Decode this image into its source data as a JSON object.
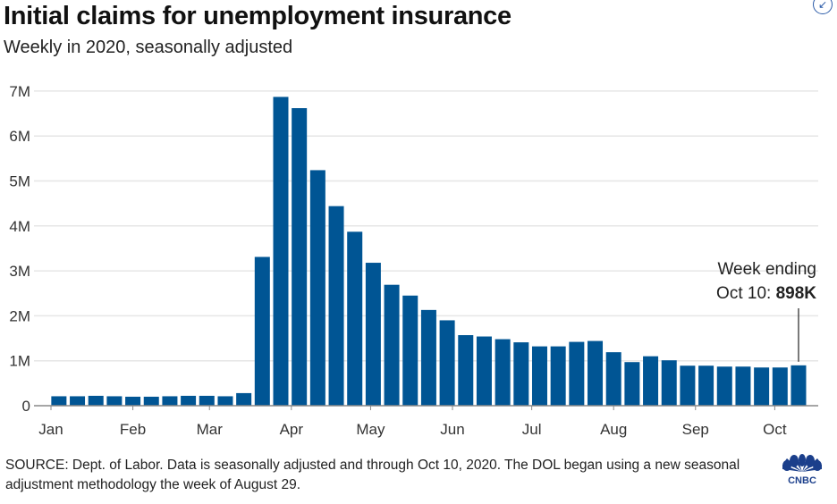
{
  "title": "Initial claims for unemployment insurance",
  "subtitle": "Weekly in 2020, seasonally adjusted",
  "source": "SOURCE: Dept. of Labor. Data is seasonally adjusted and through Oct 10, 2020. The DOL began using a new seasonal adjustment methodology the week of August 29.",
  "logo": "CNBC",
  "corner_icon": "expand-arrow-icon",
  "chart_data": {
    "type": "bar",
    "title": "Initial claims for unemployment insurance",
    "subtitle": "Weekly in 2020, seasonally adjusted",
    "xlabel": "",
    "ylabel": "",
    "ylim": [
      0,
      7000000
    ],
    "grid": true,
    "bar_color": "#005594",
    "yticks": [
      0,
      1000000,
      2000000,
      3000000,
      4000000,
      5000000,
      6000000,
      7000000
    ],
    "ytick_labels": [
      "0",
      "1M",
      "2M",
      "3M",
      "4M",
      "5M",
      "6M",
      "7M"
    ],
    "xticks": [
      "2020-01-01",
      "2020-02-01",
      "2020-03-01",
      "2020-04-01",
      "2020-05-01",
      "2020-06-01",
      "2020-07-01",
      "2020-08-01",
      "2020-09-01",
      "2020-10-01"
    ],
    "xtick_labels": [
      "Jan",
      "Feb",
      "Mar",
      "Apr",
      "May",
      "Jun",
      "Jul",
      "Aug",
      "Sep",
      "Oct"
    ],
    "categories": [
      "2020-01-04",
      "2020-01-11",
      "2020-01-18",
      "2020-01-25",
      "2020-02-01",
      "2020-02-08",
      "2020-02-15",
      "2020-02-22",
      "2020-02-29",
      "2020-03-07",
      "2020-03-14",
      "2020-03-21",
      "2020-03-28",
      "2020-04-04",
      "2020-04-11",
      "2020-04-18",
      "2020-04-25",
      "2020-05-02",
      "2020-05-09",
      "2020-05-16",
      "2020-05-23",
      "2020-05-30",
      "2020-06-06",
      "2020-06-13",
      "2020-06-20",
      "2020-06-27",
      "2020-07-04",
      "2020-07-11",
      "2020-07-18",
      "2020-07-25",
      "2020-08-01",
      "2020-08-08",
      "2020-08-15",
      "2020-08-22",
      "2020-08-29",
      "2020-09-05",
      "2020-09-12",
      "2020-09-19",
      "2020-09-26",
      "2020-10-03",
      "2020-10-10"
    ],
    "values": [
      210000,
      210000,
      220000,
      210000,
      200000,
      200000,
      210000,
      220000,
      220000,
      210000,
      280000,
      3310000,
      6870000,
      6620000,
      5240000,
      4440000,
      3870000,
      3180000,
      2690000,
      2450000,
      2130000,
      1900000,
      1570000,
      1540000,
      1480000,
      1410000,
      1320000,
      1320000,
      1420000,
      1440000,
      1190000,
      970000,
      1100000,
      1010000,
      890000,
      890000,
      870000,
      870000,
      850000,
      850000,
      898000
    ],
    "annotation": {
      "line1": "Week ending",
      "line2": "Oct 10: ",
      "value": "898K",
      "target": "2020-10-10"
    }
  }
}
